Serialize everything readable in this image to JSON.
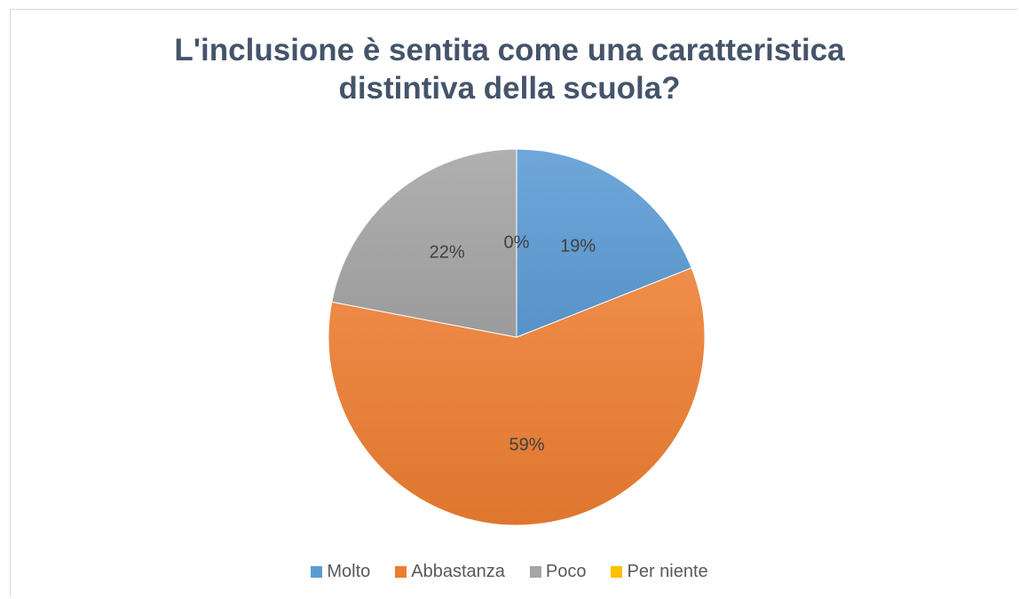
{
  "chart_data": {
    "type": "pie",
    "title_lines": [
      "L'inclusione è sentita come una caratteristica",
      "distintiva della scuola?"
    ],
    "categories": [
      "Molto",
      "Abbastanza",
      "Poco",
      "Per niente"
    ],
    "values": [
      19,
      59,
      22,
      0
    ],
    "data_labels": [
      "19%",
      "59%",
      "22%",
      "0%"
    ],
    "colors": [
      "#5b9bd5",
      "#ed7d31",
      "#a5a5a5",
      "#ffc000"
    ],
    "legend_position": "bottom",
    "start_angle": "12 o'clock",
    "direction": "clockwise"
  }
}
